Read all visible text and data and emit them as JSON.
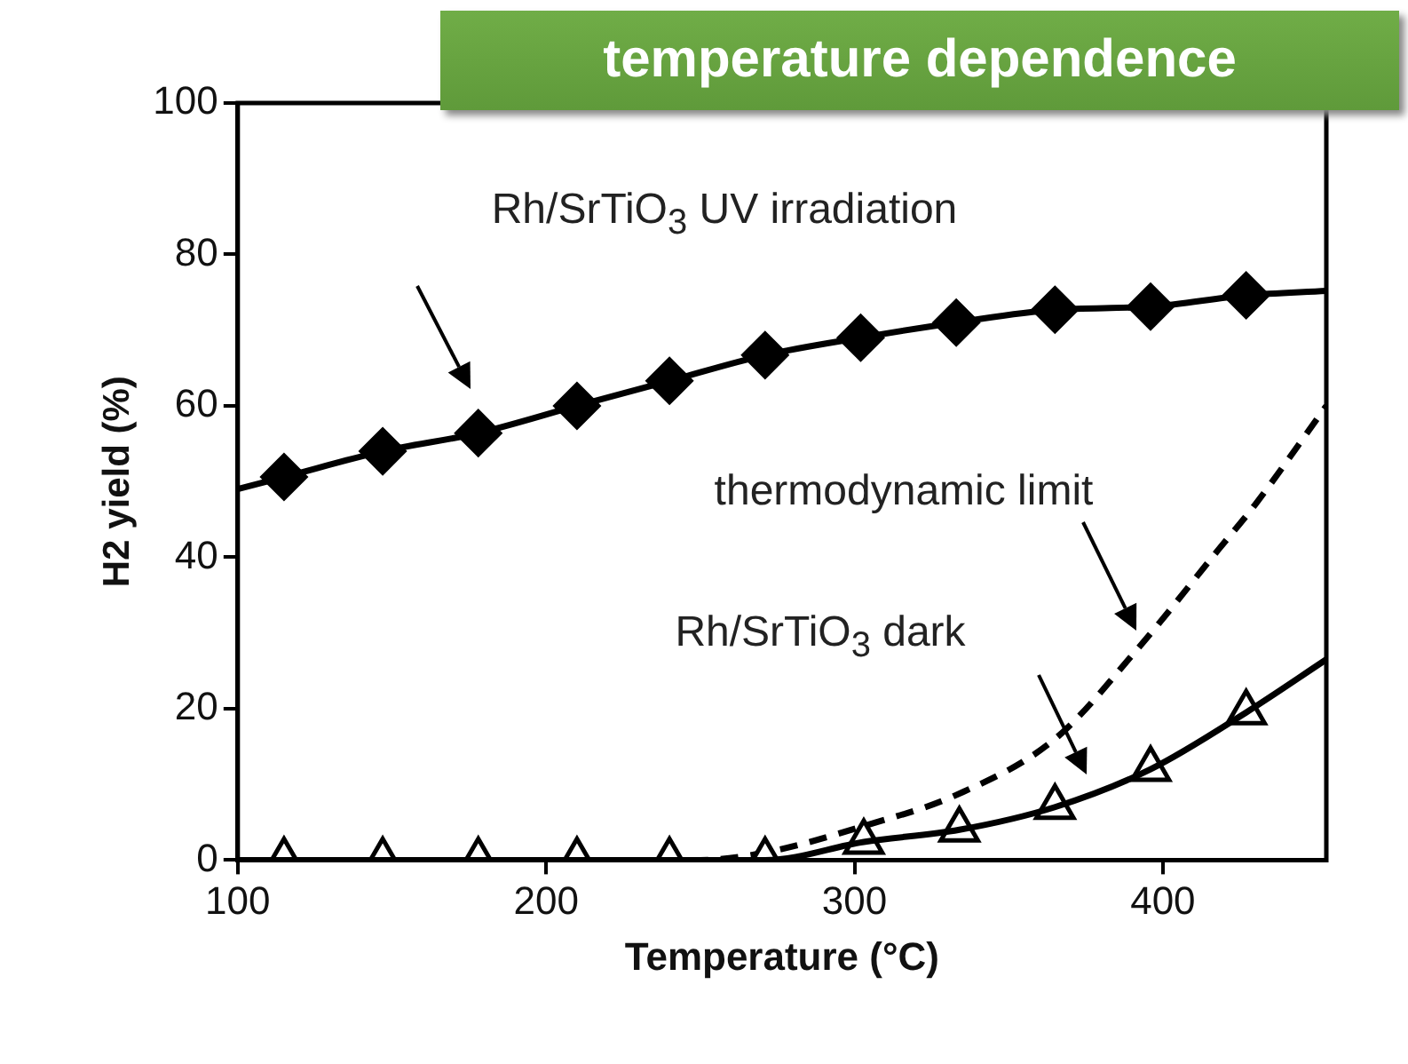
{
  "chart_data": {
    "type": "line",
    "title": "temperature dependence",
    "xlabel": "Temperature (°C)",
    "ylabel": "H2 yield (%)",
    "xlim": [
      100,
      453
    ],
    "xticks": [
      100,
      200,
      300,
      400
    ],
    "ylim": [
      0,
      100
    ],
    "yticks": [
      0,
      20,
      40,
      60,
      80,
      100
    ],
    "grid": false,
    "legend": false,
    "series": [
      {
        "color": "#000000",
        "marker": "none",
        "line_style": "solid",
        "x": [
          100,
          115,
          147,
          178,
          210,
          240,
          271,
          302,
          333,
          365,
          396,
          427,
          453
        ],
        "values": [
          49,
          50.6,
          54,
          56.4,
          60,
          63.3,
          66.7,
          69,
          71,
          72.7,
          73.1,
          74.6,
          75.2
        ]
      },
      {
        "type": "scatter",
        "color": "#000000",
        "marker": "diamond",
        "x": [
          115,
          147,
          178,
          210,
          240,
          271,
          302,
          333,
          365,
          396,
          427
        ],
        "values": [
          50.6,
          54,
          56.4,
          60,
          63.3,
          66.7,
          69,
          71,
          72.7,
          73.1,
          74.6
        ]
      },
      {
        "color": "#000000",
        "marker": "none",
        "line_style": "solid",
        "x": [
          100,
          271,
          303,
          334,
          365,
          396,
          427,
          453
        ],
        "values": [
          0,
          0,
          2.4,
          4,
          7,
          12,
          19.5,
          26.5
        ]
      },
      {
        "type": "scatter",
        "color": "#ffffff",
        "marker": "triangle",
        "x": [
          115,
          147,
          178,
          210,
          240,
          271,
          303,
          334,
          365,
          396,
          427
        ],
        "values": [
          0,
          0,
          0,
          0,
          0,
          0,
          2.4,
          4,
          7,
          12,
          19.5
        ]
      },
      {
        "color": "#000000",
        "marker": "none",
        "line_style": "dashed",
        "x": [
          100,
          250,
          271,
          303,
          333,
          365,
          392,
          418,
          430,
          453
        ],
        "values": [
          0,
          0,
          1,
          4.5,
          8.6,
          16,
          28,
          41,
          47,
          60
        ]
      }
    ],
    "annotations": [
      "Rh/SrTiO$_{3}$ UV irradiation",
      "thermodynamic limit",
      "Rh/SrTiO$_{3}$ dark"
    ]
  }
}
